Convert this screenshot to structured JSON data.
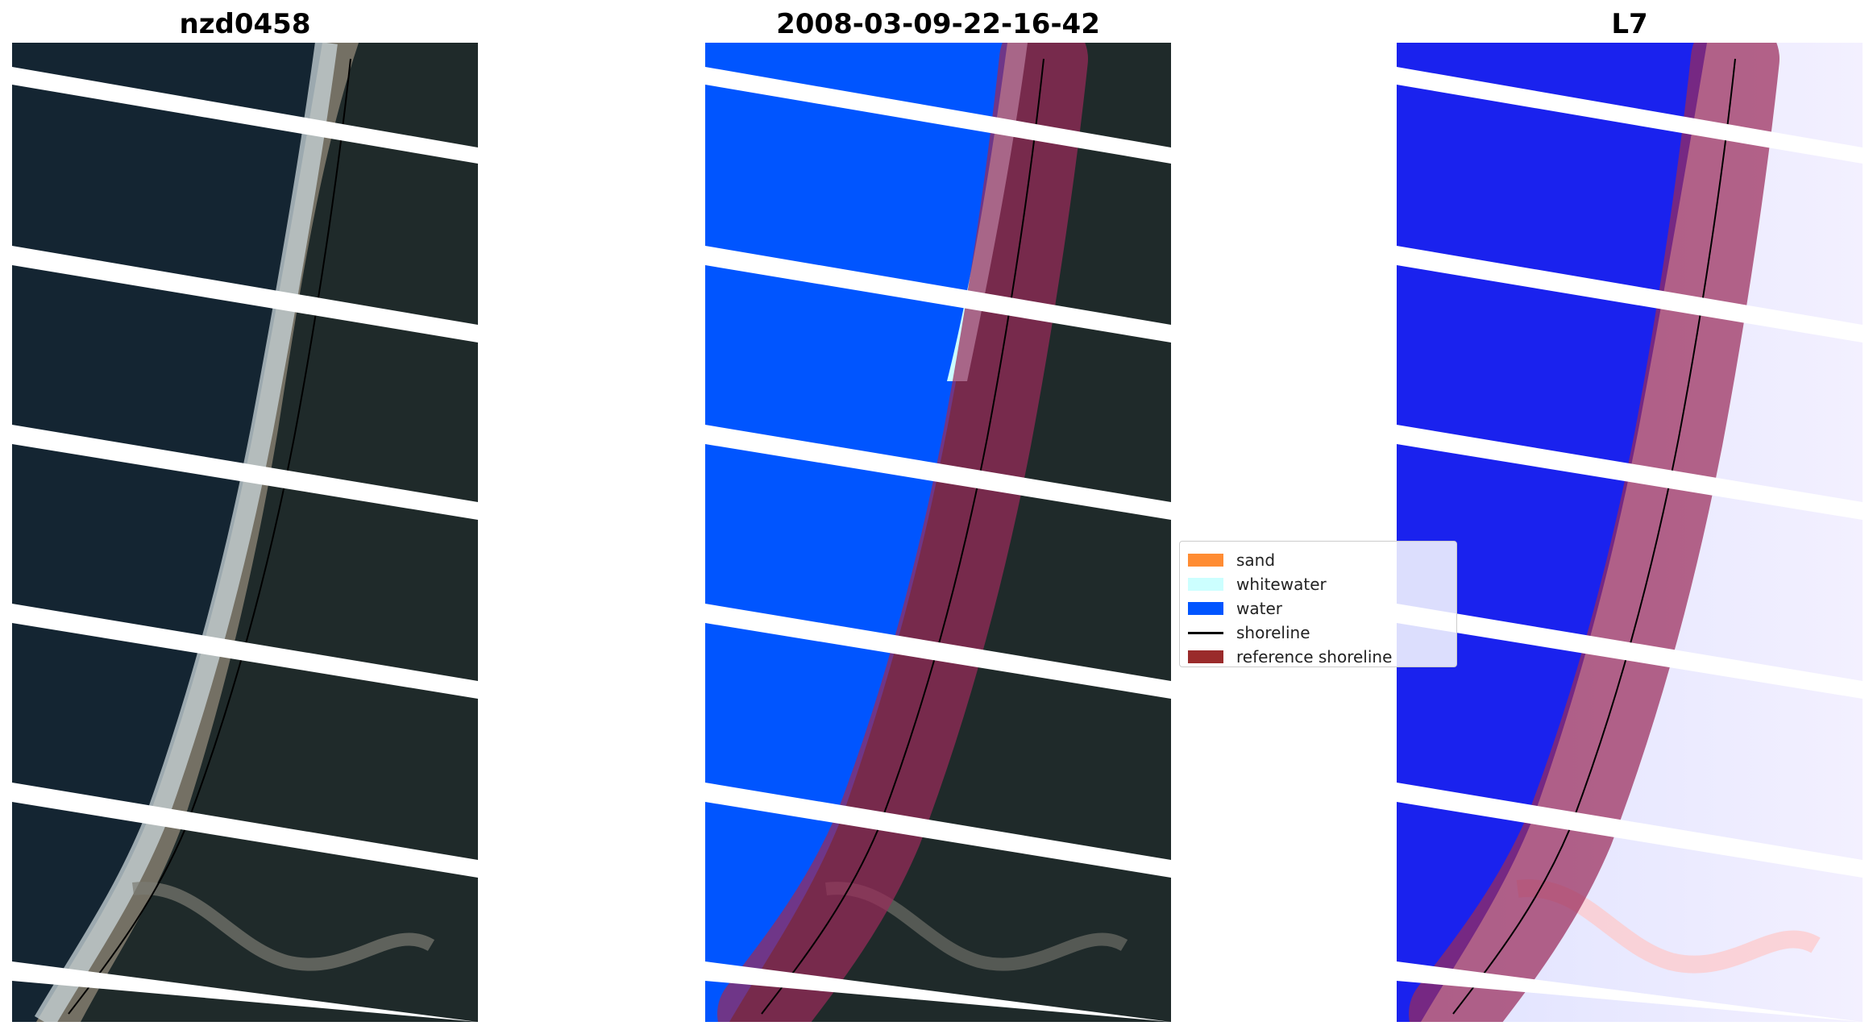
{
  "panels": [
    {
      "title": "nzd0458"
    },
    {
      "title": "2008-03-09-22-16-42"
    },
    {
      "title": "L7"
    }
  ],
  "legend": {
    "items": [
      {
        "label": "sand",
        "color": "#ff8c33"
      },
      {
        "label": "whitewater",
        "color": "#ccffff"
      },
      {
        "label": "water",
        "color": "#0055ff"
      },
      {
        "label": "shoreline",
        "color": "#000000"
      },
      {
        "label": "reference shoreline",
        "color": "#9a2b2b"
      }
    ]
  },
  "colors": {
    "ocean_dark": "#142532",
    "land_dark": "#1f2a2a",
    "beach_sand": "#8a8273",
    "surf": "#c9d6da",
    "classified_water": "#0055ff",
    "classified_whitewater": "#ccffff",
    "reference_band": "#9a2b5a",
    "index_blue": "#1a22ee",
    "index_white": "#f0f0ff",
    "stripe": "#ffffff"
  }
}
